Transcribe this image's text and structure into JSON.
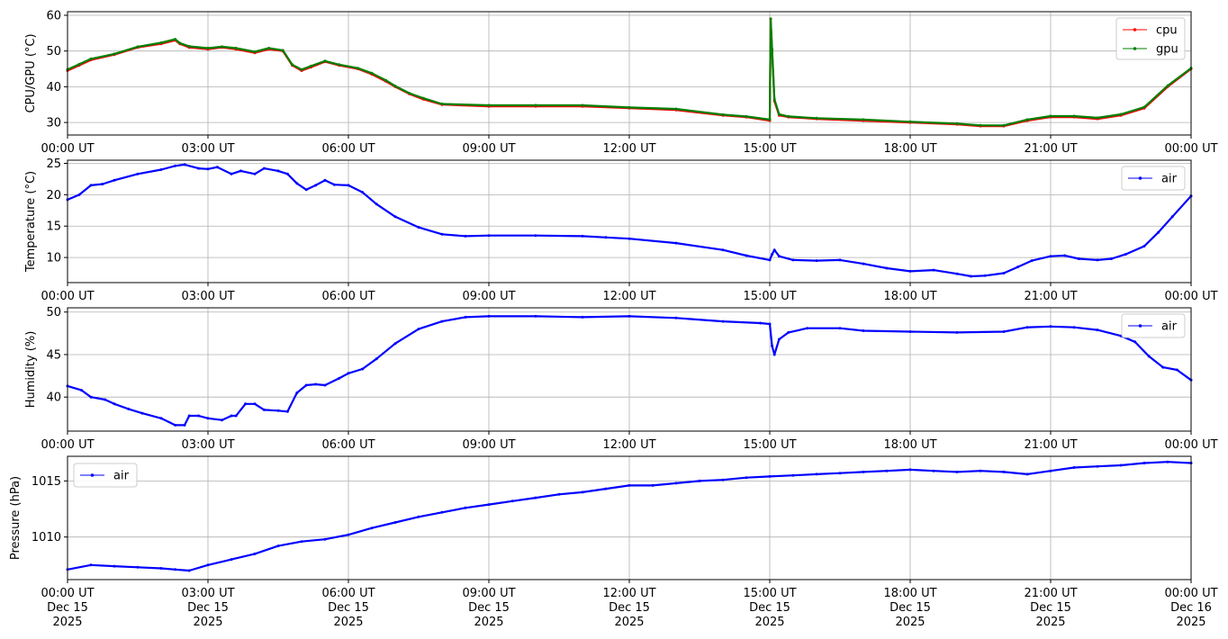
{
  "chart_data": [
    {
      "type": "line",
      "ylabel": "CPU/GPU (°C)",
      "xlim": [
        "00:00",
        "24:00"
      ],
      "ylim": [
        26.5,
        61
      ],
      "yticks": [
        30,
        40,
        50,
        60
      ],
      "xtick_labels": [
        "00:00 UT",
        "03:00 UT",
        "06:00 UT",
        "09:00 UT",
        "12:00 UT",
        "15:00 UT",
        "18:00 UT",
        "21:00 UT",
        "00:00 UT"
      ],
      "grid": true,
      "legend": "upper-right",
      "series": [
        {
          "name": "cpu",
          "color": "#ff0000",
          "x": [
            0,
            0.25,
            0.5,
            1.0,
            1.5,
            2.0,
            2.3,
            2.4,
            2.6,
            3.0,
            3.3,
            3.6,
            4.0,
            4.3,
            4.6,
            4.8,
            5.0,
            5.2,
            5.5,
            5.8,
            6.2,
            6.5,
            6.8,
            7.0,
            7.3,
            7.6,
            8.0,
            9.0,
            10.0,
            11.0,
            12.0,
            13.0,
            14.0,
            14.5,
            15.0,
            15.02,
            15.05,
            15.1,
            15.2,
            15.4,
            16.0,
            17.0,
            18.0,
            19.0,
            19.5,
            20.0,
            20.5,
            21.0,
            21.5,
            22.0,
            22.5,
            23.0,
            23.5,
            24.0
          ],
          "y": [
            44.5,
            46,
            47.5,
            49,
            51,
            52,
            53,
            52,
            51,
            50.5,
            51,
            50.5,
            49.5,
            50.5,
            50,
            46,
            44.5,
            45.5,
            47,
            46,
            45,
            43.5,
            41.5,
            40,
            38,
            36.5,
            35,
            34.5,
            34.5,
            34.5,
            34,
            33.5,
            32,
            31.5,
            30.5,
            59,
            50,
            36,
            32,
            31.5,
            31,
            30.5,
            30,
            29.5,
            29,
            29,
            30.5,
            31.5,
            31.5,
            31,
            32,
            34,
            40,
            45
          ]
        },
        {
          "name": "gpu",
          "color": "#008000",
          "x": [
            0,
            0.25,
            0.5,
            1.0,
            1.5,
            2.0,
            2.3,
            2.4,
            2.6,
            3.0,
            3.3,
            3.6,
            4.0,
            4.3,
            4.6,
            4.8,
            5.0,
            5.2,
            5.5,
            5.8,
            6.2,
            6.5,
            6.8,
            7.0,
            7.3,
            7.6,
            8.0,
            9.0,
            10.0,
            11.0,
            12.0,
            13.0,
            14.0,
            14.5,
            15.0,
            15.02,
            15.05,
            15.1,
            15.2,
            15.4,
            16.0,
            17.0,
            18.0,
            19.0,
            19.5,
            20.0,
            20.5,
            21.0,
            21.5,
            22.0,
            22.5,
            23.0,
            23.5,
            24.0
          ],
          "y": [
            44.8,
            46.3,
            47.8,
            49.2,
            51.2,
            52.3,
            53.3,
            52.2,
            51.3,
            50.8,
            51.2,
            50.8,
            49.8,
            50.8,
            50.2,
            46.2,
            44.8,
            45.8,
            47.2,
            46.2,
            45.2,
            43.8,
            41.8,
            40.2,
            38.2,
            36.8,
            35.2,
            34.8,
            34.8,
            34.8,
            34.2,
            33.8,
            32.2,
            31.7,
            30.8,
            59,
            50.5,
            36.5,
            32.3,
            31.7,
            31.2,
            30.8,
            30.2,
            29.7,
            29.2,
            29.2,
            30.8,
            31.8,
            31.8,
            31.3,
            32.3,
            34.3,
            40.3,
            45.2
          ]
        }
      ]
    },
    {
      "type": "line",
      "ylabel": "Temperature (°C)",
      "xlim": [
        "00:00",
        "24:00"
      ],
      "ylim": [
        6,
        25.5
      ],
      "yticks": [
        10,
        15,
        20,
        25
      ],
      "xtick_labels": [
        "00:00 UT",
        "03:00 UT",
        "06:00 UT",
        "09:00 UT",
        "12:00 UT",
        "15:00 UT",
        "18:00 UT",
        "21:00 UT",
        "00:00 UT"
      ],
      "grid": true,
      "legend": "upper-right",
      "series": [
        {
          "name": "air",
          "color": "#0000ff",
          "x": [
            0,
            0.25,
            0.5,
            0.75,
            1.0,
            1.5,
            2.0,
            2.3,
            2.5,
            2.8,
            3.0,
            3.2,
            3.5,
            3.7,
            4.0,
            4.2,
            4.5,
            4.7,
            4.9,
            5.1,
            5.3,
            5.5,
            5.7,
            6.0,
            6.3,
            6.6,
            7.0,
            7.5,
            8.0,
            8.5,
            9.0,
            10.0,
            11.0,
            11.5,
            12.0,
            13.0,
            14.0,
            14.5,
            15.0,
            15.05,
            15.1,
            15.2,
            15.5,
            16.0,
            16.5,
            17.0,
            17.5,
            18.0,
            18.5,
            19.0,
            19.3,
            19.6,
            20.0,
            20.3,
            20.6,
            21.0,
            21.3,
            21.6,
            22.0,
            22.3,
            22.6,
            23.0,
            23.3,
            23.6,
            24.0
          ],
          "y": [
            19.2,
            20,
            21.5,
            21.7,
            22.3,
            23.3,
            24,
            24.6,
            24.8,
            24.2,
            24.1,
            24.4,
            23.3,
            23.8,
            23.3,
            24.2,
            23.8,
            23.3,
            21.8,
            20.8,
            21.5,
            22.3,
            21.6,
            21.5,
            20.4,
            18.5,
            16.5,
            14.8,
            13.7,
            13.4,
            13.5,
            13.5,
            13.4,
            13.2,
            13,
            12.3,
            11.2,
            10.3,
            9.6,
            10.5,
            11.2,
            10.2,
            9.6,
            9.5,
            9.6,
            9,
            8.3,
            7.8,
            8,
            7.4,
            7,
            7.1,
            7.5,
            8.5,
            9.5,
            10.2,
            10.3,
            9.8,
            9.6,
            9.8,
            10.5,
            11.8,
            14,
            16.5,
            19.8
          ]
        }
      ]
    },
    {
      "type": "line",
      "ylabel": "Humidity (%)",
      "xlim": [
        "00:00",
        "24:00"
      ],
      "ylim": [
        36,
        50.5
      ],
      "yticks": [
        40,
        45,
        50
      ],
      "xtick_labels": [
        "00:00 UT",
        "03:00 UT",
        "06:00 UT",
        "09:00 UT",
        "12:00 UT",
        "15:00 UT",
        "18:00 UT",
        "21:00 UT",
        "00:00 UT"
      ],
      "grid": true,
      "legend": "upper-right",
      "series": [
        {
          "name": "air",
          "color": "#0000ff",
          "x": [
            0,
            0.3,
            0.5,
            0.8,
            1.0,
            1.3,
            1.6,
            2.0,
            2.3,
            2.5,
            2.6,
            2.8,
            3.0,
            3.3,
            3.5,
            3.6,
            3.8,
            4.0,
            4.2,
            4.5,
            4.7,
            4.9,
            5.1,
            5.3,
            5.5,
            5.8,
            6.0,
            6.3,
            6.6,
            7.0,
            7.5,
            8.0,
            8.5,
            9.0,
            10.0,
            11.0,
            12.0,
            13.0,
            14.0,
            14.8,
            15.0,
            15.05,
            15.1,
            15.2,
            15.4,
            15.8,
            16.5,
            17.0,
            18.0,
            19.0,
            20.0,
            20.5,
            21.0,
            21.5,
            22.0,
            22.5,
            22.8,
            23.1,
            23.4,
            23.7,
            24.0
          ],
          "y": [
            41.3,
            40.8,
            40,
            39.7,
            39.2,
            38.6,
            38.1,
            37.5,
            36.7,
            36.7,
            37.8,
            37.8,
            37.5,
            37.3,
            37.8,
            37.8,
            39.2,
            39.2,
            38.5,
            38.4,
            38.3,
            40.5,
            41.4,
            41.5,
            41.4,
            42.2,
            42.8,
            43.3,
            44.5,
            46.3,
            48,
            48.9,
            49.4,
            49.5,
            49.5,
            49.4,
            49.5,
            49.3,
            48.9,
            48.7,
            48.6,
            46,
            45,
            46.8,
            47.6,
            48.1,
            48.1,
            47.8,
            47.7,
            47.6,
            47.7,
            48.2,
            48.3,
            48.2,
            47.9,
            47.2,
            46.5,
            44.8,
            43.5,
            43.2,
            42
          ]
        }
      ]
    },
    {
      "type": "line",
      "ylabel": "Pressure (hPa)",
      "xlim": [
        "2025-12-15 00:00",
        "2025-12-16 00:00"
      ],
      "ylim": [
        1006.2,
        1017.2
      ],
      "yticks": [
        1010,
        1015
      ],
      "xtick_labels": [
        "00:00 UT\nDec 15\n2025",
        "03:00 UT\nDec 15\n2025",
        "06:00 UT\nDec 15\n2025",
        "09:00 UT\nDec 15\n2025",
        "12:00 UT\nDec 15\n2025",
        "15:00 UT\nDec 15\n2025",
        "18:00 UT\nDec 15\n2025",
        "21:00 UT\nDec 15\n2025",
        "00:00 UT\nDec 16\n2025"
      ],
      "grid": true,
      "legend": "upper-left",
      "series": [
        {
          "name": "air",
          "color": "#0000ff",
          "x": [
            0,
            0.5,
            1.0,
            1.5,
            2.0,
            2.3,
            2.6,
            3.0,
            3.5,
            4.0,
            4.5,
            5.0,
            5.5,
            6.0,
            6.5,
            7.0,
            7.5,
            8.0,
            8.5,
            9.0,
            9.5,
            10.0,
            10.5,
            11.0,
            11.5,
            12.0,
            12.5,
            13.0,
            13.5,
            14.0,
            14.5,
            15.0,
            15.5,
            16.0,
            16.5,
            17.0,
            17.5,
            18.0,
            18.5,
            19.0,
            19.5,
            20.0,
            20.5,
            21.0,
            21.5,
            22.0,
            22.5,
            23.0,
            23.5,
            24.0
          ],
          "y": [
            1007.1,
            1007.5,
            1007.4,
            1007.3,
            1007.2,
            1007.1,
            1007.0,
            1007.5,
            1008.0,
            1008.5,
            1009.2,
            1009.6,
            1009.8,
            1010.2,
            1010.8,
            1011.3,
            1011.8,
            1012.2,
            1012.6,
            1012.9,
            1013.2,
            1013.5,
            1013.8,
            1014.0,
            1014.3,
            1014.6,
            1014.6,
            1014.8,
            1015.0,
            1015.1,
            1015.3,
            1015.4,
            1015.5,
            1015.6,
            1015.7,
            1015.8,
            1015.9,
            1016.0,
            1015.9,
            1015.8,
            1015.9,
            1015.8,
            1015.6,
            1015.9,
            1016.2,
            1016.3,
            1016.4,
            1016.6,
            1016.7,
            1016.6
          ]
        }
      ]
    }
  ]
}
